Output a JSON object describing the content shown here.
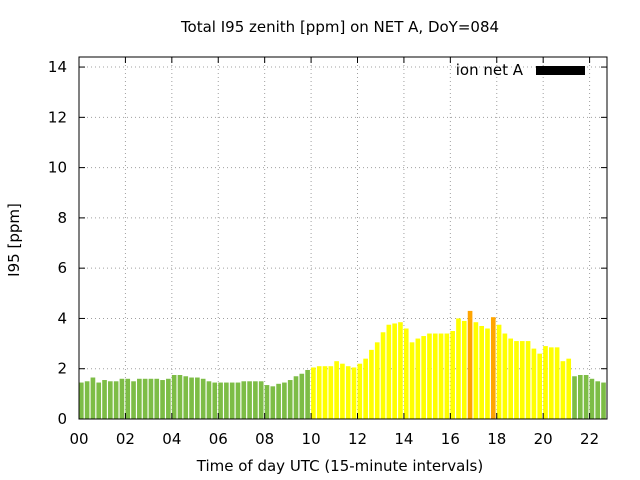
{
  "chart_data": {
    "type": "bar",
    "title": "Total I95 zenith [ppm] on NET A, DoY=084",
    "xlabel": "Time of day UTC (15-minute intervals)",
    "ylabel": "I95 [ppm]",
    "ylim": [
      0,
      14.4
    ],
    "xlim": [
      0,
      22.75
    ],
    "yticks": [
      0,
      2,
      4,
      6,
      8,
      10,
      12,
      14
    ],
    "xtick_values": [
      0,
      2,
      4,
      6,
      8,
      10,
      12,
      14,
      16,
      18,
      20,
      22
    ],
    "xtick_labels": [
      "00",
      "02",
      "04",
      "06",
      "08",
      "10",
      "12",
      "14",
      "16",
      "18",
      "20",
      "22"
    ],
    "grid": true,
    "legend": {
      "label": "ion net A",
      "position": "top-right",
      "color": "#000000"
    },
    "bar_width_hours": 0.2,
    "colors": {
      "green": "#7dbd46",
      "yellow": "#ffff00",
      "orange": "#ffa500"
    },
    "series": [
      {
        "name": "ion net A",
        "x": [
          0.0,
          0.25,
          0.5,
          0.75,
          1.0,
          1.25,
          1.5,
          1.75,
          2.0,
          2.25,
          2.5,
          2.75,
          3.0,
          3.25,
          3.5,
          3.75,
          4.0,
          4.25,
          4.5,
          4.75,
          5.0,
          5.25,
          5.5,
          5.75,
          6.0,
          6.25,
          6.5,
          6.75,
          7.0,
          7.25,
          7.5,
          7.75,
          8.0,
          8.25,
          8.5,
          8.75,
          9.0,
          9.25,
          9.5,
          9.75,
          10.0,
          10.25,
          10.5,
          10.75,
          11.0,
          11.25,
          11.5,
          11.75,
          12.0,
          12.25,
          12.5,
          12.75,
          13.0,
          13.25,
          13.5,
          13.75,
          14.0,
          14.25,
          14.5,
          14.75,
          15.0,
          15.25,
          15.5,
          15.75,
          16.0,
          16.25,
          16.5,
          16.75,
          17.0,
          17.25,
          17.5,
          17.75,
          18.0,
          18.25,
          18.5,
          18.75,
          19.0,
          19.25,
          19.5,
          19.75,
          20.0,
          20.25,
          20.5,
          20.75,
          21.0,
          21.25,
          21.5,
          21.75,
          22.0,
          22.25,
          22.5
        ],
        "values": [
          1.45,
          1.5,
          1.65,
          1.45,
          1.55,
          1.5,
          1.5,
          1.6,
          1.6,
          1.5,
          1.6,
          1.6,
          1.6,
          1.6,
          1.55,
          1.6,
          1.75,
          1.75,
          1.7,
          1.65,
          1.65,
          1.6,
          1.5,
          1.45,
          1.45,
          1.45,
          1.45,
          1.45,
          1.5,
          1.5,
          1.5,
          1.5,
          1.35,
          1.3,
          1.4,
          1.45,
          1.55,
          1.7,
          1.8,
          1.95,
          2.05,
          2.1,
          2.1,
          2.1,
          2.3,
          2.2,
          2.1,
          2.05,
          2.2,
          2.4,
          2.75,
          3.05,
          3.45,
          3.75,
          3.8,
          3.85,
          3.6,
          3.05,
          3.2,
          3.3,
          3.4,
          3.4,
          3.4,
          3.4,
          3.5,
          4.0,
          3.9,
          4.3,
          3.85,
          3.7,
          3.6,
          4.05,
          3.75,
          3.4,
          3.2,
          3.1,
          3.1,
          3.1,
          2.8,
          2.6,
          2.9,
          2.85,
          2.85,
          2.3,
          2.4,
          1.7,
          1.75,
          1.75,
          1.6,
          1.5,
          1.45
        ],
        "color_index": [
          "green",
          "green",
          "green",
          "green",
          "green",
          "green",
          "green",
          "green",
          "green",
          "green",
          "green",
          "green",
          "green",
          "green",
          "green",
          "green",
          "green",
          "green",
          "green",
          "green",
          "green",
          "green",
          "green",
          "green",
          "green",
          "green",
          "green",
          "green",
          "green",
          "green",
          "green",
          "green",
          "green",
          "green",
          "green",
          "green",
          "green",
          "green",
          "green",
          "green",
          "yellow",
          "yellow",
          "yellow",
          "yellow",
          "yellow",
          "yellow",
          "yellow",
          "yellow",
          "yellow",
          "yellow",
          "yellow",
          "yellow",
          "yellow",
          "yellow",
          "yellow",
          "yellow",
          "yellow",
          "yellow",
          "yellow",
          "yellow",
          "yellow",
          "yellow",
          "yellow",
          "yellow",
          "yellow",
          "yellow",
          "yellow",
          "orange",
          "yellow",
          "yellow",
          "yellow",
          "orange",
          "yellow",
          "yellow",
          "yellow",
          "yellow",
          "yellow",
          "yellow",
          "yellow",
          "yellow",
          "yellow",
          "yellow",
          "yellow",
          "yellow",
          "yellow",
          "green",
          "green",
          "green",
          "green",
          "green",
          "green"
        ]
      }
    ]
  }
}
